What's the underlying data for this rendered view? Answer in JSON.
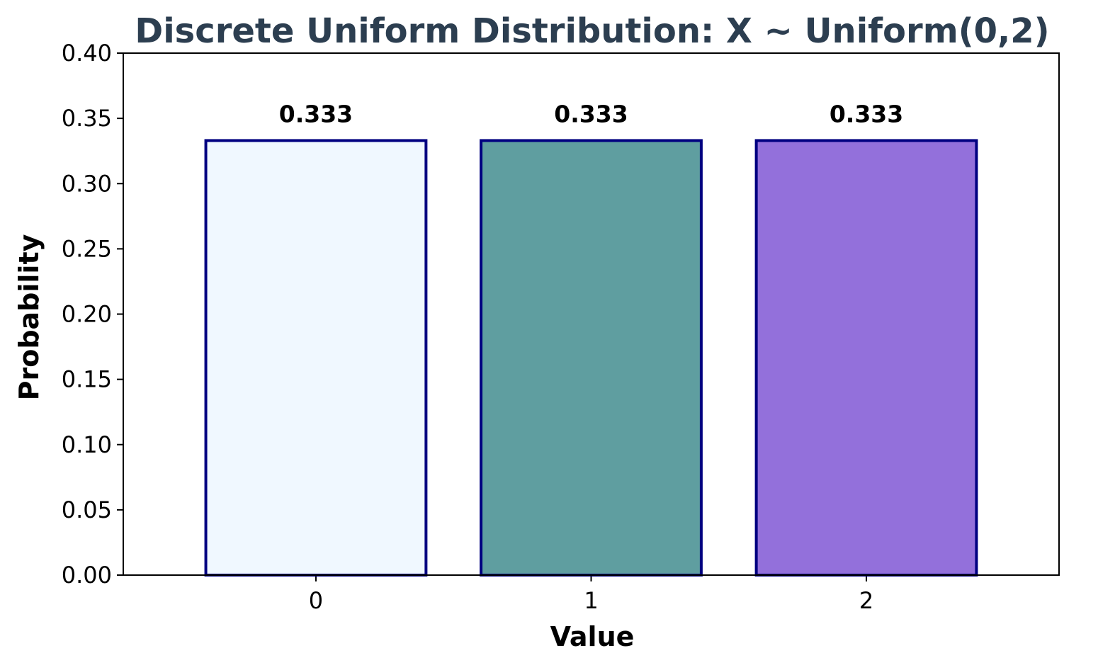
{
  "chart_data": {
    "type": "bar",
    "title": "Discrete Uniform Distribution: X ~ Uniform(0,2)",
    "xlabel": "Value",
    "ylabel": "Probability",
    "categories": [
      "0",
      "1",
      "2"
    ],
    "values": [
      0.333,
      0.333,
      0.333
    ],
    "value_labels": [
      "0.333",
      "0.333",
      "0.333"
    ],
    "bar_colors": [
      "#f0f8ff",
      "#5f9ea0",
      "#9370db"
    ],
    "bar_edge_color": "#000080",
    "ylim": [
      0,
      0.4
    ],
    "yticks": [
      "0.00",
      "0.05",
      "0.10",
      "0.15",
      "0.20",
      "0.25",
      "0.30",
      "0.35",
      "0.40"
    ],
    "title_color": "#2c3e50",
    "grid": false,
    "legend": "none"
  }
}
